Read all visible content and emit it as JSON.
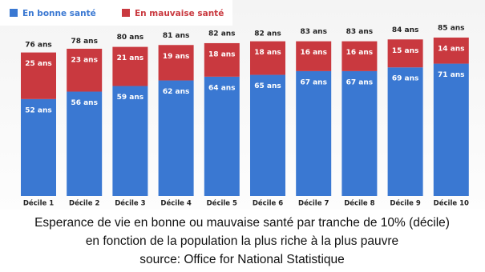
{
  "chart_data": {
    "type": "stacked-bar",
    "title": "Esperance de vie en bonne ou mauvaise santé par tranche de 10% (décile)",
    "subtitle": "en fonction de la population la plus riche à la plus pauvre",
    "source": "source: Office for National Statistique",
    "categories": [
      "Décile 1",
      "Décile 2",
      "Décile 3",
      "Décile 4",
      "Décile 5",
      "Décile 6",
      "Décile 7",
      "Décile 8",
      "Décile 9",
      "Décile 10"
    ],
    "series": [
      {
        "name": "En bonne santé",
        "color": "#3a78d2",
        "values": [
          52,
          56,
          59,
          62,
          64,
          65,
          67,
          67,
          69,
          71
        ],
        "value_labels": [
          "52 ans",
          "56 ans",
          "59 ans",
          "62 ans",
          "64 ans",
          "65 ans",
          "67 ans",
          "67 ans",
          "69 ans",
          "71 ans"
        ]
      },
      {
        "name": "En mauvaise santé",
        "color": "#c9393f",
        "values": [
          25,
          23,
          21,
          19,
          18,
          18,
          16,
          16,
          15,
          14
        ],
        "value_labels": [
          "25 ans",
          "23 ans",
          "21 ans",
          "19 ans",
          "18 ans",
          "18 ans",
          "16 ans",
          "16 ans",
          "15 ans",
          "14 ans"
        ]
      }
    ],
    "totals": {
      "values": [
        76,
        78,
        80,
        81,
        82,
        82,
        83,
        83,
        84,
        85
      ],
      "value_labels": [
        "76 ans",
        "78 ans",
        "80 ans",
        "81 ans",
        "82 ans",
        "82 ans",
        "83 ans",
        "83 ans",
        "84 ans",
        "85 ans"
      ]
    }
  }
}
